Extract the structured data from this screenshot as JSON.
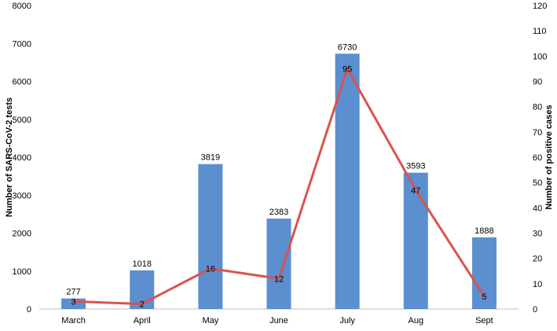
{
  "chart_data": {
    "type": "bar",
    "categories": [
      "March",
      "April",
      "May",
      "June",
      "July",
      "Aug",
      "Sept"
    ],
    "series": [
      {
        "type": "bar",
        "axis": "left",
        "values": [
          277,
          1018,
          3819,
          2383,
          6730,
          3593,
          1888
        ],
        "color": "#5b8fcf"
      },
      {
        "type": "line",
        "axis": "right",
        "values": [
          3,
          2,
          16,
          12,
          95,
          47,
          5
        ],
        "color": "#d9534f"
      }
    ],
    "xlabel": "",
    "ylabel": "Number of SARS-CoV-2 tests",
    "ylabel_right": "Number of positive cases",
    "ylim": [
      0,
      8000
    ],
    "ylim_right": [
      0,
      120
    ],
    "yticks": [
      0,
      1000,
      2000,
      3000,
      4000,
      5000,
      6000,
      7000,
      8000
    ],
    "yticks_right": [
      0,
      10,
      20,
      30,
      40,
      50,
      60,
      70,
      80,
      90,
      100,
      110,
      120
    ],
    "grid": false,
    "legend": "none",
    "data_labels": true
  }
}
